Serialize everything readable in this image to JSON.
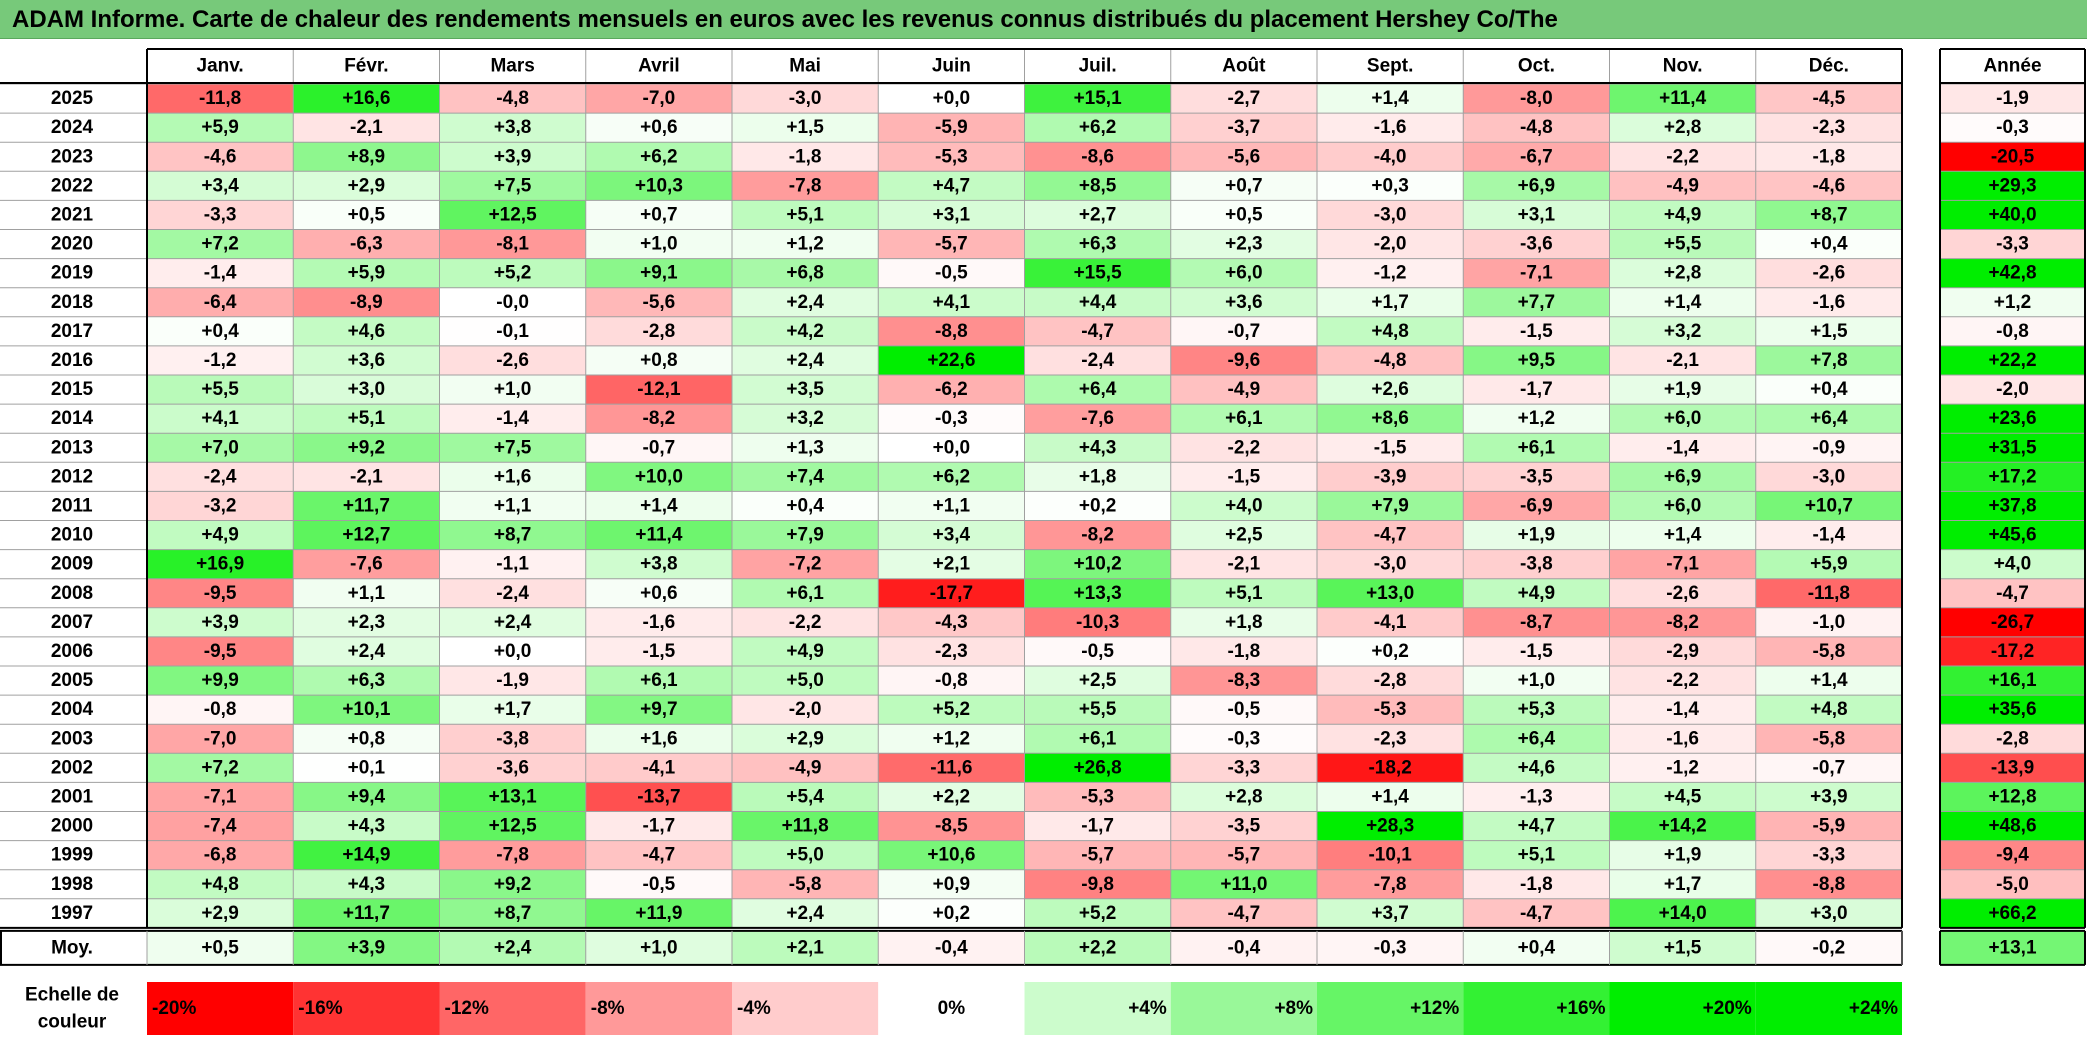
{
  "title": "ADAM Informe. Carte de chaleur des rendements mensuels en euros avec les revenus connus distribués du placement Hershey Co/The",
  "chart_data": {
    "type": "heatmap",
    "title": "ADAM Informe. Carte de chaleur des rendements mensuels en euros avec les revenus connus distribués du placement Hershey Co/The",
    "unit": "%",
    "columns": [
      "Janv.",
      "Févr.",
      "Mars",
      "Avril",
      "Mai",
      "Juin",
      "Juil.",
      "Août",
      "Sept.",
      "Oct.",
      "Nov.",
      "Déc."
    ],
    "year_header": "Année",
    "rows": [
      {
        "label": "2025",
        "values": [
          "-11,8",
          "+16,6",
          "-4,8",
          "-7,0",
          "-3,0",
          "+0,0",
          "+15,1",
          "-2,7",
          "+1,4",
          "-8,0",
          "+11,4",
          "-4,5"
        ],
        "year": "-1,9"
      },
      {
        "label": "2024",
        "values": [
          "+5,9",
          "-2,1",
          "+3,8",
          "+0,6",
          "+1,5",
          "-5,9",
          "+6,2",
          "-3,7",
          "-1,6",
          "-4,8",
          "+2,8",
          "-2,3"
        ],
        "year": "-0,3"
      },
      {
        "label": "2023",
        "values": [
          "-4,6",
          "+8,9",
          "+3,9",
          "+6,2",
          "-1,8",
          "-5,3",
          "-8,6",
          "-5,6",
          "-4,0",
          "-6,7",
          "-2,2",
          "-1,8"
        ],
        "year": "-20,5"
      },
      {
        "label": "2022",
        "values": [
          "+3,4",
          "+2,9",
          "+7,5",
          "+10,3",
          "-7,8",
          "+4,7",
          "+8,5",
          "+0,7",
          "+0,3",
          "+6,9",
          "-4,9",
          "-4,6"
        ],
        "year": "+29,3"
      },
      {
        "label": "2021",
        "values": [
          "-3,3",
          "+0,5",
          "+12,5",
          "+0,7",
          "+5,1",
          "+3,1",
          "+2,7",
          "+0,5",
          "-3,0",
          "+3,1",
          "+4,9",
          "+8,7"
        ],
        "year": "+40,0"
      },
      {
        "label": "2020",
        "values": [
          "+7,2",
          "-6,3",
          "-8,1",
          "+1,0",
          "+1,2",
          "-5,7",
          "+6,3",
          "+2,3",
          "-2,0",
          "-3,6",
          "+5,5",
          "+0,4"
        ],
        "year": "-3,3"
      },
      {
        "label": "2019",
        "values": [
          "-1,4",
          "+5,9",
          "+5,2",
          "+9,1",
          "+6,8",
          "-0,5",
          "+15,5",
          "+6,0",
          "-1,2",
          "-7,1",
          "+2,8",
          "-2,6"
        ],
        "year": "+42,8"
      },
      {
        "label": "2018",
        "values": [
          "-6,4",
          "-8,9",
          "-0,0",
          "-5,6",
          "+2,4",
          "+4,1",
          "+4,4",
          "+3,6",
          "+1,7",
          "+7,7",
          "+1,4",
          "-1,6"
        ],
        "year": "+1,2"
      },
      {
        "label": "2017",
        "values": [
          "+0,4",
          "+4,6",
          "-0,1",
          "-2,8",
          "+4,2",
          "-8,8",
          "-4,7",
          "-0,7",
          "+4,8",
          "-1,5",
          "+3,2",
          "+1,5"
        ],
        "year": "-0,8"
      },
      {
        "label": "2016",
        "values": [
          "-1,2",
          "+3,6",
          "-2,6",
          "+0,8",
          "+2,4",
          "+22,6",
          "-2,4",
          "-9,6",
          "-4,8",
          "+9,5",
          "-2,1",
          "+7,8"
        ],
        "year": "+22,2"
      },
      {
        "label": "2015",
        "values": [
          "+5,5",
          "+3,0",
          "+1,0",
          "-12,1",
          "+3,5",
          "-6,2",
          "+6,4",
          "-4,9",
          "+2,6",
          "-1,7",
          "+1,9",
          "+0,4"
        ],
        "year": "-2,0"
      },
      {
        "label": "2014",
        "values": [
          "+4,1",
          "+5,1",
          "-1,4",
          "-8,2",
          "+3,2",
          "-0,3",
          "-7,6",
          "+6,1",
          "+8,6",
          "+1,2",
          "+6,0",
          "+6,4"
        ],
        "year": "+23,6"
      },
      {
        "label": "2013",
        "values": [
          "+7,0",
          "+9,2",
          "+7,5",
          "-0,7",
          "+1,3",
          "+0,0",
          "+4,3",
          "-2,2",
          "-1,5",
          "+6,1",
          "-1,4",
          "-0,9"
        ],
        "year": "+31,5"
      },
      {
        "label": "2012",
        "values": [
          "-2,4",
          "-2,1",
          "+1,6",
          "+10,0",
          "+7,4",
          "+6,2",
          "+1,8",
          "-1,5",
          "-3,9",
          "-3,5",
          "+6,9",
          "-3,0"
        ],
        "year": "+17,2"
      },
      {
        "label": "2011",
        "values": [
          "-3,2",
          "+11,7",
          "+1,1",
          "+1,4",
          "+0,4",
          "+1,1",
          "+0,2",
          "+4,0",
          "+7,9",
          "-6,9",
          "+6,0",
          "+10,7"
        ],
        "year": "+37,8"
      },
      {
        "label": "2010",
        "values": [
          "+4,9",
          "+12,7",
          "+8,7",
          "+11,4",
          "+7,9",
          "+3,4",
          "-8,2",
          "+2,5",
          "-4,7",
          "+1,9",
          "+1,4",
          "-1,4"
        ],
        "year": "+45,6"
      },
      {
        "label": "2009",
        "values": [
          "+16,9",
          "-7,6",
          "-1,1",
          "+3,8",
          "-7,2",
          "+2,1",
          "+10,2",
          "-2,1",
          "-3,0",
          "-3,8",
          "-7,1",
          "+5,9"
        ],
        "year": "+4,0"
      },
      {
        "label": "2008",
        "values": [
          "-9,5",
          "+1,1",
          "-2,4",
          "+0,6",
          "+6,1",
          "-17,7",
          "+13,3",
          "+5,1",
          "+13,0",
          "+4,9",
          "-2,6",
          "-11,8"
        ],
        "year": "-4,7"
      },
      {
        "label": "2007",
        "values": [
          "+3,9",
          "+2,3",
          "+2,4",
          "-1,6",
          "-2,2",
          "-4,3",
          "-10,3",
          "+1,8",
          "-4,1",
          "-8,7",
          "-8,2",
          "-1,0"
        ],
        "year": "-26,7"
      },
      {
        "label": "2006",
        "values": [
          "-9,5",
          "+2,4",
          "+0,0",
          "-1,5",
          "+4,9",
          "-2,3",
          "-0,5",
          "-1,8",
          "+0,2",
          "-1,5",
          "-2,9",
          "-5,8"
        ],
        "year": "-17,2"
      },
      {
        "label": "2005",
        "values": [
          "+9,9",
          "+6,3",
          "-1,9",
          "+6,1",
          "+5,0",
          "-0,8",
          "+2,5",
          "-8,3",
          "-2,8",
          "+1,0",
          "-2,2",
          "+1,4"
        ],
        "year": "+16,1"
      },
      {
        "label": "2004",
        "values": [
          "-0,8",
          "+10,1",
          "+1,7",
          "+9,7",
          "-2,0",
          "+5,2",
          "+5,5",
          "-0,5",
          "-5,3",
          "+5,3",
          "-1,4",
          "+4,8"
        ],
        "year": "+35,6"
      },
      {
        "label": "2003",
        "values": [
          "-7,0",
          "+0,8",
          "-3,8",
          "+1,6",
          "+2,9",
          "+1,2",
          "+6,1",
          "-0,3",
          "-2,3",
          "+6,4",
          "-1,6",
          "-5,8"
        ],
        "year": "-2,8"
      },
      {
        "label": "2002",
        "values": [
          "+7,2",
          "+0,1",
          "-3,6",
          "-4,1",
          "-4,9",
          "-11,6",
          "+26,8",
          "-3,3",
          "-18,2",
          "+4,6",
          "-1,2",
          "-0,7"
        ],
        "year": "-13,9"
      },
      {
        "label": "2001",
        "values": [
          "-7,1",
          "+9,4",
          "+13,1",
          "-13,7",
          "+5,4",
          "+2,2",
          "-5,3",
          "+2,8",
          "+1,4",
          "-1,3",
          "+4,5",
          "+3,9"
        ],
        "year": "+12,8"
      },
      {
        "label": "2000",
        "values": [
          "-7,4",
          "+4,3",
          "+12,5",
          "-1,7",
          "+11,8",
          "-8,5",
          "-1,7",
          "-3,5",
          "+28,3",
          "+4,7",
          "+14,2",
          "-5,9"
        ],
        "year": "+48,6"
      },
      {
        "label": "1999",
        "values": [
          "-6,8",
          "+14,9",
          "-7,8",
          "-4,7",
          "+5,0",
          "+10,6",
          "-5,7",
          "-5,7",
          "-10,1",
          "+5,1",
          "+1,9",
          "-3,3"
        ],
        "year": "-9,4"
      },
      {
        "label": "1998",
        "values": [
          "+4,8",
          "+4,3",
          "+9,2",
          "-0,5",
          "-5,8",
          "+0,9",
          "-9,8",
          "+11,0",
          "-7,8",
          "-1,8",
          "+1,7",
          "-8,8"
        ],
        "year": "-5,0"
      },
      {
        "label": "1997",
        "values": [
          "+2,9",
          "+11,7",
          "+8,7",
          "+11,9",
          "+2,4",
          "+0,2",
          "+5,2",
          "-4,7",
          "+3,7",
          "-4,7",
          "+14,0",
          "+3,0"
        ],
        "year": "+66,2"
      }
    ],
    "average_row": {
      "label": "Moy.",
      "values": [
        "+0,5",
        "+3,9",
        "+2,4",
        "+1,0",
        "+2,1",
        "-0,4",
        "+2,2",
        "-0,4",
        "-0,3",
        "+0,4",
        "+1,5",
        "-0,2"
      ],
      "year": "+13,1"
    },
    "scale": {
      "label_line1": "Echelle de",
      "label_line2": "couleur",
      "labels": [
        "-20%",
        "-16%",
        "-12%",
        "-8%",
        "-4%",
        "0%",
        "+4%",
        "+8%",
        "+12%",
        "+16%",
        "+20%",
        "+24%"
      ],
      "values": [
        -20,
        -16,
        -12,
        -8,
        -4,
        0,
        4,
        8,
        12,
        16,
        20,
        24
      ]
    },
    "colors": {
      "negative_max": "#ff0000",
      "neutral": "#ffffff",
      "positive_max": "#00ee00",
      "title_bg": "#77c97a"
    }
  }
}
